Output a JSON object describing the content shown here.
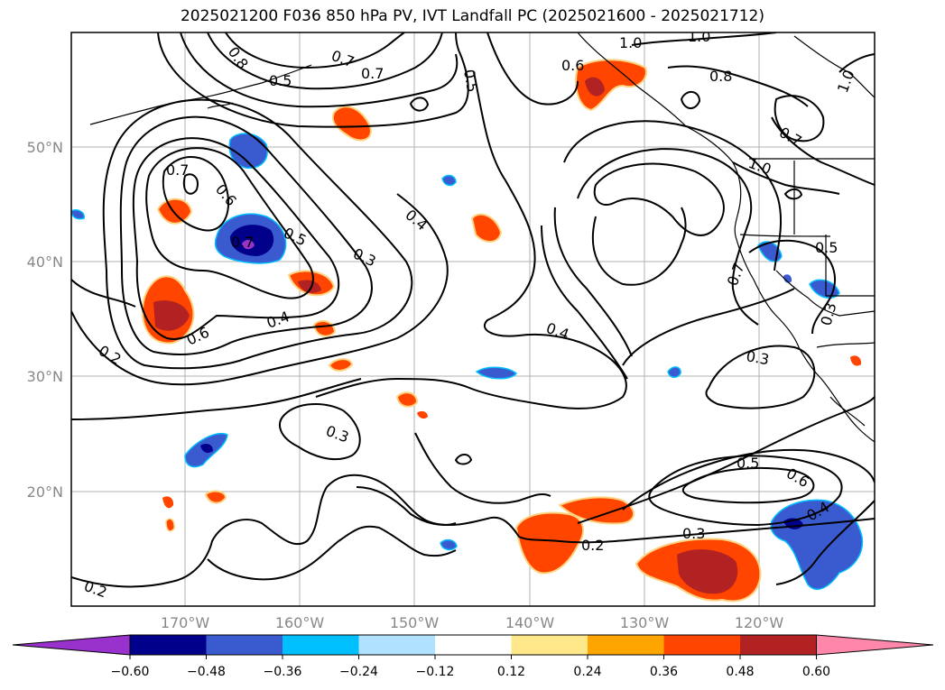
{
  "title": "2025021200 F036 850 hPa PV, IVT Landfall PC (2025021600 - 2025021712)",
  "axes": {
    "lat_labels": [
      "50°N",
      "40°N",
      "30°N",
      "20°N"
    ],
    "lon_labels": [
      "170°W",
      "160°W",
      "150°W",
      "140°W",
      "130°W",
      "120°W"
    ]
  },
  "colorbar": {
    "ticks": [
      "−0.60",
      "−0.48",
      "−0.36",
      "−0.24",
      "−0.12",
      "0.12",
      "0.24",
      "0.36",
      "0.48",
      "0.60"
    ],
    "colors": [
      "#9932cc",
      "#00008b",
      "#3a5bd0",
      "#00bfff",
      "#b0e2ff",
      "#ffffff",
      "#ffe88a",
      "#ffa500",
      "#ff4500",
      "#b22222",
      "#ff88aa"
    ]
  },
  "contour_labels": [
    "0.8",
    "0.7",
    "0.7",
    "0.6",
    "0.6",
    "0.5",
    "0.5",
    "0.4",
    "0.4",
    "0.4",
    "0.3",
    "0.3",
    "0.3",
    "0.2",
    "0.2",
    "0.2",
    "1.0",
    "1.0",
    "1.0",
    "0.5",
    "0.6",
    "0.4",
    "0.3",
    "0.7",
    "0.8",
    "0.7",
    "0.6",
    "1.0",
    "0.5",
    "0.7",
    "0.7",
    "0.5",
    "0.3"
  ],
  "map_colors": {
    "contour": "#000000",
    "grid": "#b0b0b0",
    "pos_outer": "#ffd27f",
    "pos_mid": "#ff4500",
    "pos_inner": "#b22222",
    "neg_outer": "#3a5bd0",
    "neg_inner": "#00008b",
    "neg_core": "#9932cc"
  }
}
